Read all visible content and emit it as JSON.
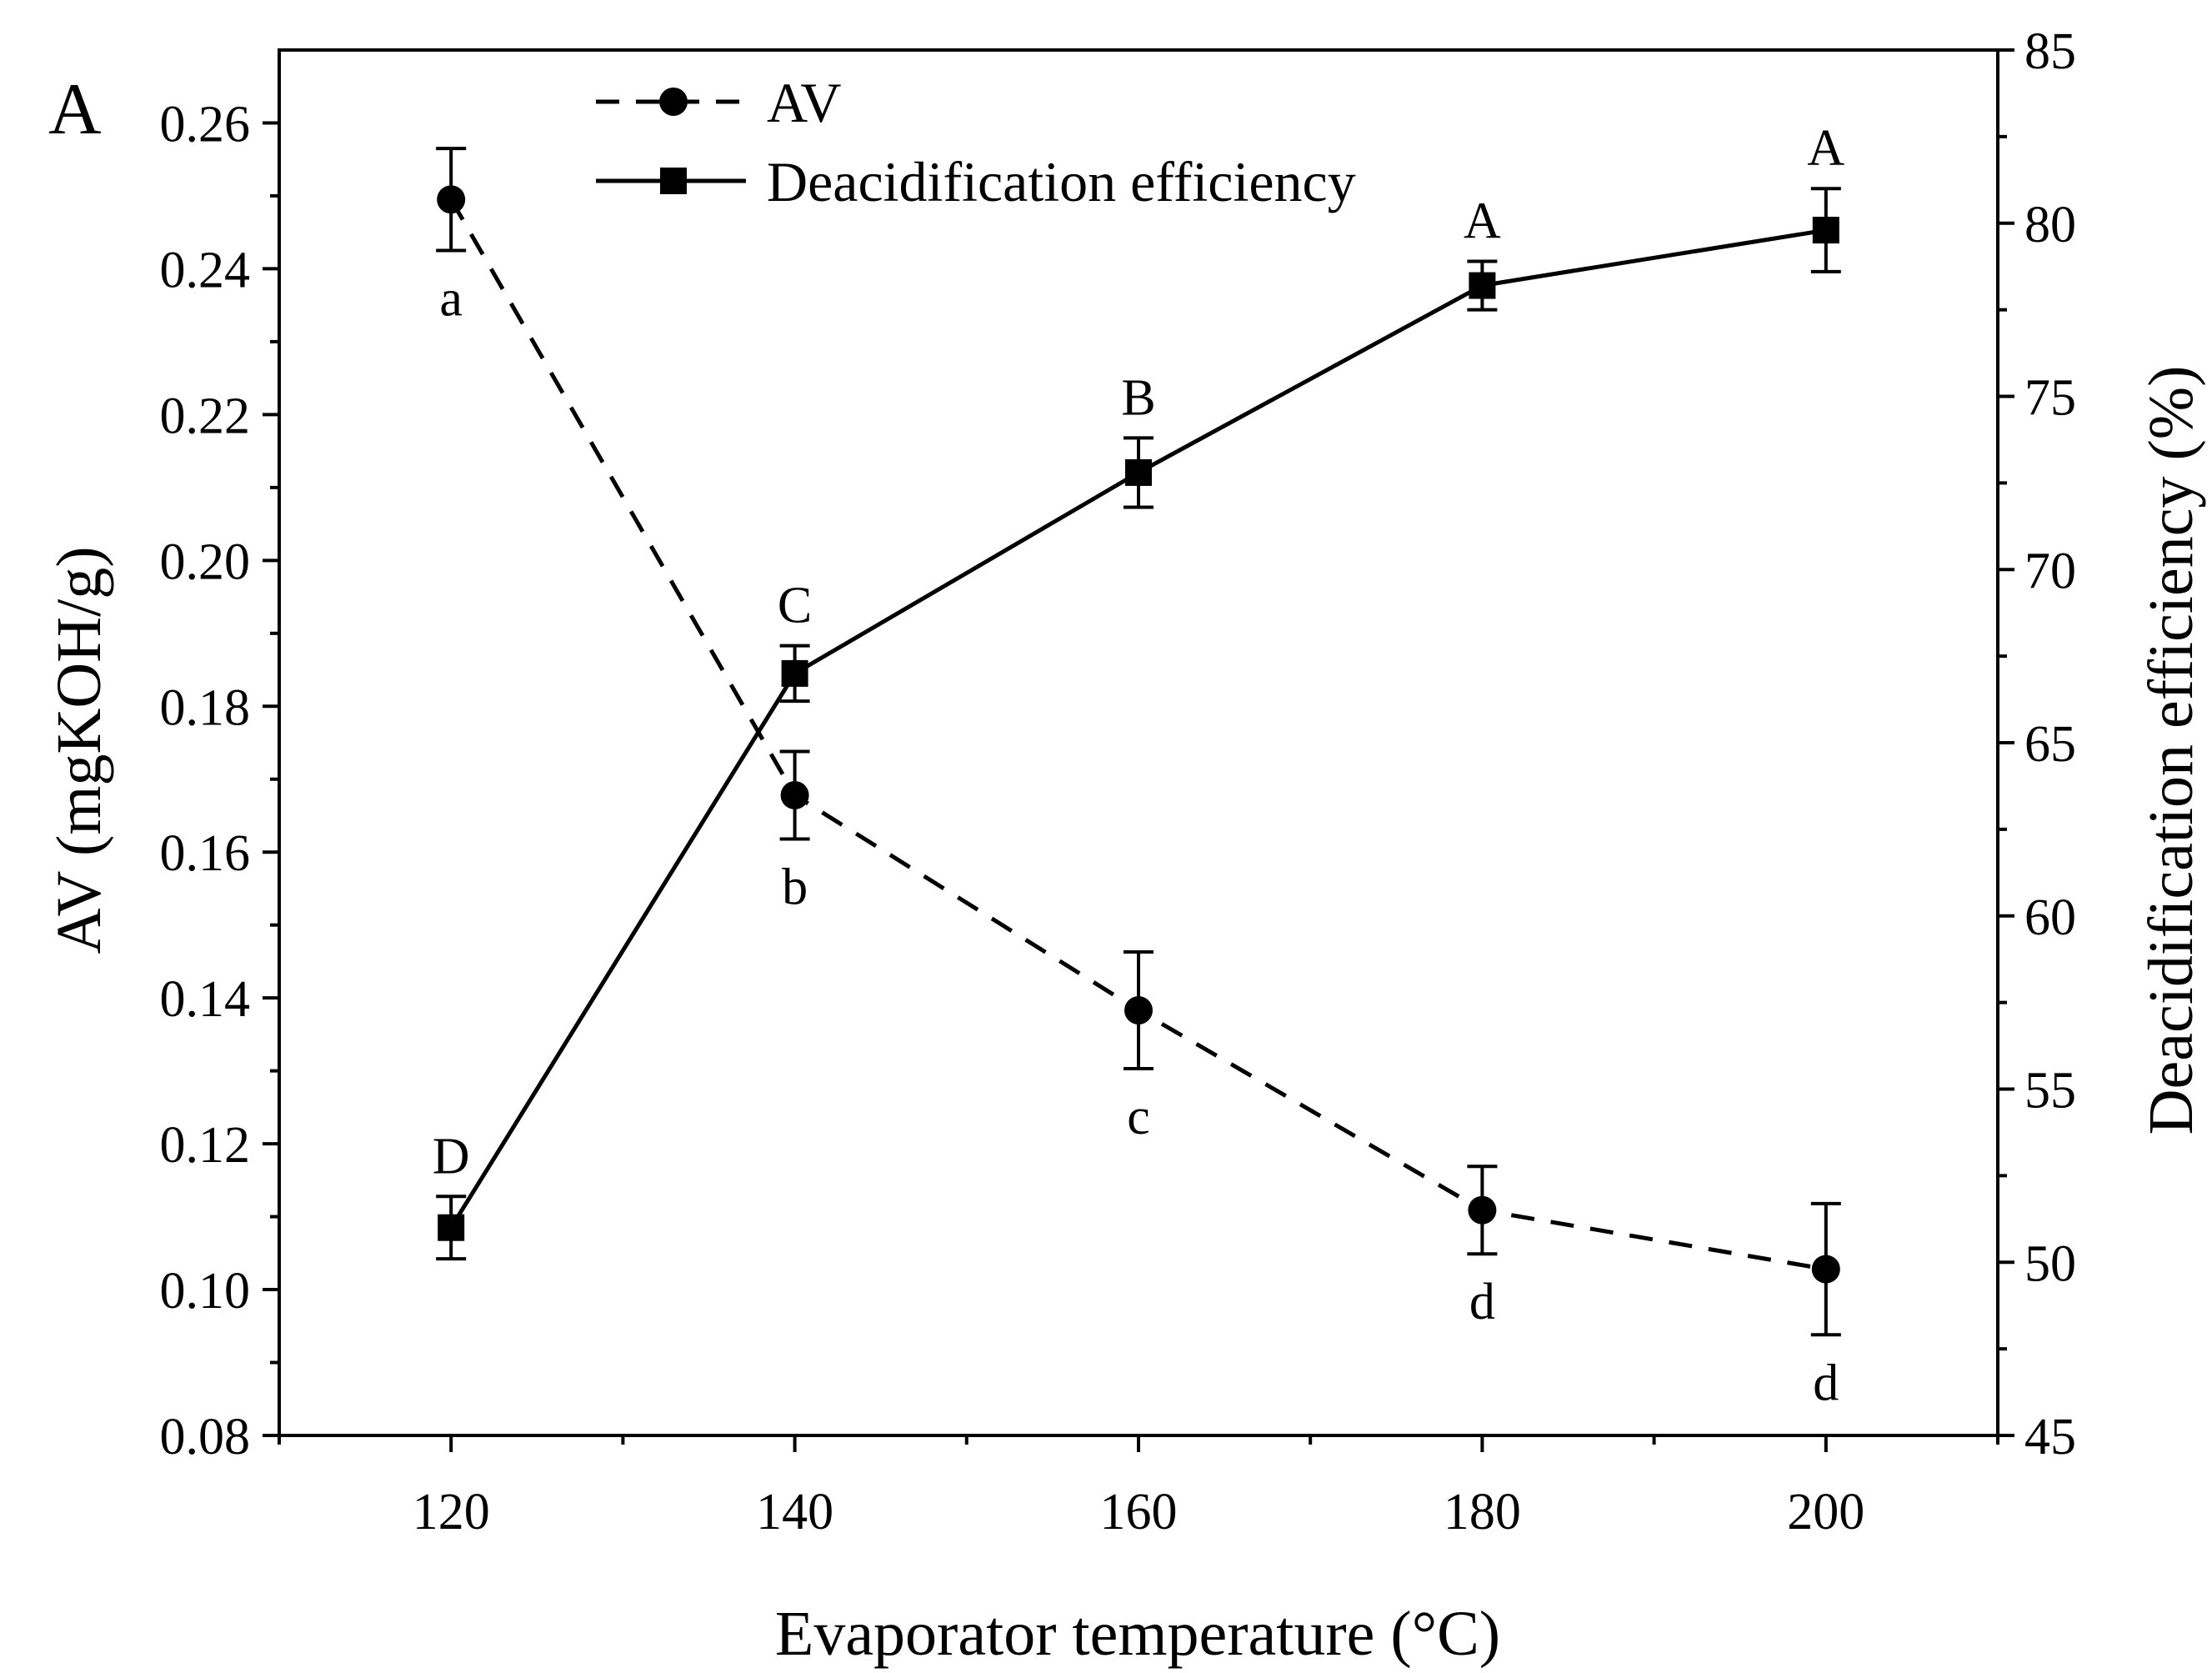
{
  "chart_data": {
    "type": "line",
    "panel_label": "A",
    "xlabel": "Evaporator temperature (°C)",
    "ylabel_left": "AV (mgKOH/g)",
    "ylabel_right": "Deacidification efficiency (%)",
    "xlim": [
      110,
      210
    ],
    "ylim_left": [
      0.08,
      0.27
    ],
    "ylim_right": [
      45,
      85
    ],
    "x_ticks": [
      120,
      140,
      160,
      180,
      200
    ],
    "x_tick_labels": [
      "120",
      "140",
      "160",
      "180",
      "200"
    ],
    "y_left_ticks": [
      0.08,
      0.1,
      0.12,
      0.14,
      0.16,
      0.18,
      0.2,
      0.22,
      0.24,
      0.26
    ],
    "y_left_tick_labels": [
      "0.08",
      "0.10",
      "0.12",
      "0.14",
      "0.16",
      "0.18",
      "0.20",
      "0.22",
      "0.24",
      "0.26"
    ],
    "y_right_ticks": [
      45,
      50,
      55,
      60,
      65,
      70,
      75,
      80,
      85
    ],
    "y_right_tick_labels": [
      "45",
      "50",
      "55",
      "60",
      "65",
      "70",
      "75",
      "80",
      "85"
    ],
    "legend_position": "top-center",
    "series": [
      {
        "name": "AV",
        "axis": "left",
        "line_style": "dashed",
        "marker": "circle",
        "x": [
          120,
          140,
          160,
          180,
          200
        ],
        "values": [
          0.2495,
          0.1678,
          0.1383,
          0.1109,
          0.1028
        ],
        "errors": [
          0.007,
          0.006,
          0.008,
          0.006,
          0.009
        ],
        "significance_letters": [
          "a",
          "b",
          "c",
          "d",
          "d"
        ],
        "letter_placement": "below"
      },
      {
        "name": "Deacidification efficiency",
        "axis": "right",
        "line_style": "solid",
        "marker": "square",
        "x": [
          120,
          140,
          160,
          180,
          200
        ],
        "values": [
          51.0,
          67.0,
          72.8,
          78.2,
          79.8
        ],
        "errors": [
          0.9,
          0.8,
          1.0,
          0.7,
          1.2
        ],
        "significance_letters": [
          "D",
          "C",
          "B",
          "A",
          "A"
        ],
        "letter_placement": "above"
      }
    ]
  }
}
